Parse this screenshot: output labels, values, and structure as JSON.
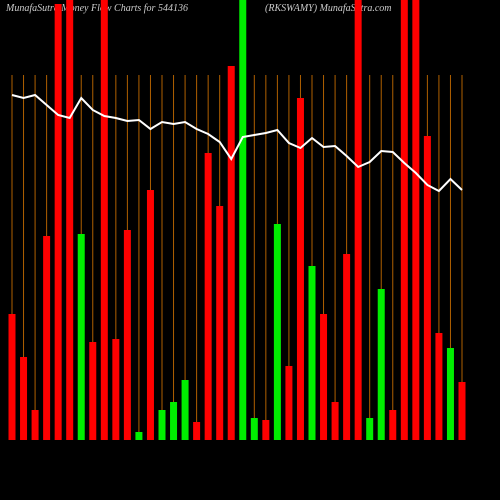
{
  "chart_data": {
    "type": "bar",
    "title": "MunafaSutra Money Flow Charts for 544136",
    "subtitle": "(RKSWAMY) MunafaSutra.com",
    "ylim": [
      0,
      440
    ],
    "y2lim": [
      0,
      440
    ],
    "series": [
      {
        "values": [
          126,
          83,
          30,
          204,
          436,
          460,
          206,
          98,
          460,
          101,
          210,
          8,
          250,
          30,
          38,
          60,
          18,
          287,
          234,
          374,
          460,
          22,
          20,
          216,
          74,
          342,
          174,
          126,
          38,
          186,
          460,
          22,
          151,
          30,
          460,
          460,
          304,
          107,
          92,
          58
        ],
        "colors": [
          "#ff0000",
          "#ff0000",
          "#ff0000",
          "#ff0000",
          "#ff0000",
          "#ff0000",
          "#00ee00",
          "#ff0000",
          "#ff0000",
          "#ff0000",
          "#ff0000",
          "#00ee00",
          "#ff0000",
          "#00ee00",
          "#00ee00",
          "#00ee00",
          "#ff0000",
          "#ff0000",
          "#ff0000",
          "#ff0000",
          "#00ee00",
          "#00ee00",
          "#ff0000",
          "#00ee00",
          "#ff0000",
          "#ff0000",
          "#00ee00",
          "#ff0000",
          "#ff0000",
          "#ff0000",
          "#ff0000",
          "#00ee00",
          "#00ee00",
          "#ff0000",
          "#ff0000",
          "#ff0000",
          "#ff0000",
          "#ff0000",
          "#00ee00",
          "#ff0000"
        ]
      },
      {
        "axis": "y2",
        "color": "#ffffff",
        "values": [
          345,
          342,
          345,
          335,
          325,
          322,
          342,
          330,
          324,
          322,
          319,
          320,
          311,
          318,
          316,
          318,
          311,
          306,
          298,
          281,
          303,
          305,
          307,
          310,
          297,
          292,
          302,
          293,
          294,
          284,
          273,
          278,
          289,
          288,
          277,
          267,
          255,
          249,
          261,
          250
        ]
      }
    ]
  }
}
